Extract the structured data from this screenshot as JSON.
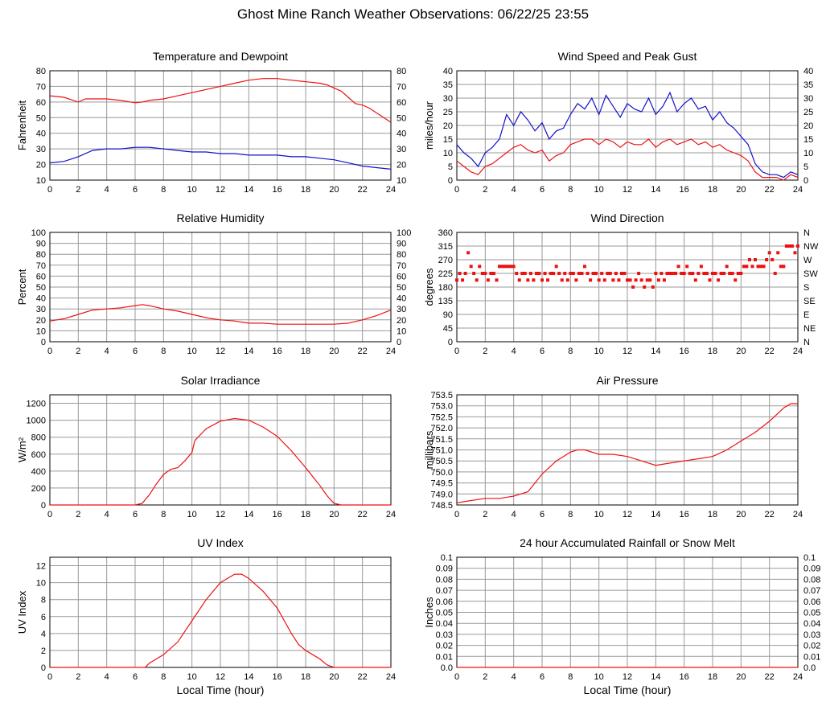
{
  "page": {
    "title": "Ghost Mine Ranch Weather Observations: 06/22/25 23:55"
  },
  "colors": {
    "red": "#ee1111",
    "blue": "#1111cc",
    "grid": "#999999"
  },
  "chart_data": [
    {
      "id": "temp",
      "type": "line",
      "title": "Temperature and Dewpoint",
      "ylabel": "Fahrenheit",
      "xlim": [
        0,
        24
      ],
      "ylim": [
        10,
        80
      ],
      "xticks": [
        "0",
        "2",
        "4",
        "6",
        "8",
        "10",
        "12",
        "14",
        "16",
        "18",
        "20",
        "22",
        "24"
      ],
      "yticks": [
        "10",
        "20",
        "30",
        "40",
        "50",
        "60",
        "70",
        "80"
      ],
      "right_ticks": [
        "10",
        "20",
        "30",
        "40",
        "50",
        "60",
        "70",
        "80"
      ],
      "grid": true,
      "series": [
        {
          "color": "red",
          "x": [
            0,
            1,
            2,
            2.5,
            4,
            5,
            6,
            6.5,
            7,
            8,
            9,
            10,
            11,
            12,
            13,
            14,
            15,
            16,
            17,
            18,
            19,
            19.5,
            20,
            20.5,
            21,
            21.5,
            22,
            22.5,
            23,
            23.5,
            24
          ],
          "y": [
            64,
            63,
            60,
            62,
            62,
            61,
            59.5,
            60,
            61,
            62,
            64,
            66,
            68,
            70,
            72,
            74,
            75,
            75,
            74,
            73,
            72,
            71,
            69,
            67,
            63,
            59,
            58,
            56,
            53,
            50,
            47
          ]
        },
        {
          "color": "blue",
          "x": [
            0,
            1,
            2,
            3,
            4,
            5,
            6,
            7,
            8,
            9,
            10,
            11,
            12,
            13,
            14,
            15,
            16,
            17,
            18,
            19,
            20,
            21,
            22,
            23,
            24
          ],
          "y": [
            21,
            22,
            25,
            29,
            30,
            30,
            31,
            31,
            30,
            29,
            28,
            28,
            27,
            27,
            26,
            26,
            26,
            25,
            25,
            24,
            23,
            21,
            19,
            18,
            17
          ]
        }
      ]
    },
    {
      "id": "wind",
      "type": "line",
      "title": "Wind Speed and Peak Gust",
      "ylabel": "miles/hour",
      "xlim": [
        0,
        24
      ],
      "ylim": [
        0,
        40
      ],
      "xticks": [
        "0",
        "2",
        "4",
        "6",
        "8",
        "10",
        "12",
        "14",
        "16",
        "18",
        "20",
        "22",
        "24"
      ],
      "yticks": [
        "0",
        "5",
        "10",
        "15",
        "20",
        "25",
        "30",
        "35",
        "40"
      ],
      "right_ticks": [
        "0",
        "5",
        "10",
        "15",
        "20",
        "25",
        "30",
        "35",
        "40"
      ],
      "grid": true,
      "series": [
        {
          "color": "blue",
          "x": [
            0,
            0.5,
            1,
            1.5,
            2,
            2.5,
            3,
            3.5,
            4,
            4.5,
            5,
            5.5,
            6,
            6.5,
            7,
            7.5,
            8,
            8.5,
            9,
            9.5,
            10,
            10.5,
            11,
            11.5,
            12,
            12.5,
            13,
            13.5,
            14,
            14.5,
            15,
            15.5,
            16,
            16.5,
            17,
            17.5,
            18,
            18.5,
            19,
            19.5,
            20,
            20.5,
            21,
            21.5,
            22,
            22.5,
            23,
            23.5,
            24
          ],
          "y": [
            13,
            10,
            8,
            5,
            10,
            12,
            15,
            24,
            20,
            25,
            22,
            18,
            21,
            15,
            18,
            19,
            24,
            28,
            26,
            30,
            24,
            31,
            27,
            23,
            28,
            26,
            25,
            30,
            24,
            27,
            32,
            25,
            28,
            30,
            26,
            27,
            22,
            25,
            21,
            19,
            16,
            13,
            6,
            3,
            2,
            2,
            1,
            3,
            2
          ]
        },
        {
          "color": "red",
          "x": [
            0,
            0.5,
            1,
            1.5,
            2,
            2.5,
            3,
            3.5,
            4,
            4.5,
            5,
            5.5,
            6,
            6.5,
            7,
            7.5,
            8,
            8.5,
            9,
            9.5,
            10,
            10.5,
            11,
            11.5,
            12,
            12.5,
            13,
            13.5,
            14,
            14.5,
            15,
            15.5,
            16,
            16.5,
            17,
            17.5,
            18,
            18.5,
            19,
            19.5,
            20,
            20.5,
            21,
            21.5,
            22,
            22.5,
            23,
            23.5,
            24
          ],
          "y": [
            7,
            5,
            3,
            2,
            5,
            6,
            8,
            10,
            12,
            13,
            11,
            10,
            11,
            7,
            9,
            10,
            13,
            14,
            15,
            15,
            13,
            15,
            14,
            12,
            14,
            13,
            13,
            15,
            12,
            14,
            15,
            13,
            14,
            15,
            13,
            14,
            12,
            13,
            11,
            10,
            9,
            7,
            3,
            1,
            1,
            1,
            0,
            2,
            1
          ]
        }
      ]
    },
    {
      "id": "humidity",
      "type": "line",
      "title": "Relative Humidity",
      "ylabel": "Percent",
      "xlim": [
        0,
        24
      ],
      "ylim": [
        0,
        100
      ],
      "xticks": [
        "0",
        "2",
        "4",
        "6",
        "8",
        "10",
        "12",
        "14",
        "16",
        "18",
        "20",
        "22",
        "24"
      ],
      "yticks": [
        "0",
        "10",
        "20",
        "30",
        "40",
        "50",
        "60",
        "70",
        "80",
        "90",
        "100"
      ],
      "right_ticks": [
        "0",
        "10",
        "20",
        "30",
        "40",
        "50",
        "60",
        "70",
        "80",
        "90",
        "100"
      ],
      "grid": true,
      "series": [
        {
          "color": "red",
          "x": [
            0,
            1,
            2,
            3,
            4,
            5,
            6,
            6.5,
            7,
            8,
            9,
            10,
            11,
            12,
            13,
            14,
            15,
            16,
            17,
            18,
            19,
            20,
            21,
            22,
            23,
            24
          ],
          "y": [
            19,
            21,
            25,
            29,
            30,
            31,
            33,
            34,
            33,
            30,
            28,
            25,
            22,
            20,
            19,
            17,
            17,
            16,
            16,
            16,
            16,
            16,
            17,
            20,
            24,
            29
          ]
        }
      ]
    },
    {
      "id": "winddir",
      "type": "scatter",
      "title": "Wind Direction",
      "ylabel": "degrees",
      "xlim": [
        0,
        24
      ],
      "ylim": [
        0,
        360
      ],
      "xticks": [
        "0",
        "2",
        "4",
        "6",
        "8",
        "10",
        "12",
        "14",
        "16",
        "18",
        "20",
        "22",
        "24"
      ],
      "yticks": [
        "0",
        "45",
        "90",
        "135",
        "180",
        "225",
        "270",
        "315",
        "360"
      ],
      "right_ticks": [
        "N",
        "NE",
        "E",
        "SE",
        "S",
        "SW",
        "W",
        "NW",
        "N"
      ],
      "grid": true,
      "series": [
        {
          "color": "red",
          "x": [
            0,
            0.2,
            0.4,
            0.6,
            0.8,
            1,
            1.2,
            1.4,
            1.6,
            1.8,
            2,
            2.2,
            2.4,
            2.6,
            2.8,
            3,
            3.2,
            3.4,
            3.6,
            3.8,
            4,
            4.2,
            4.4,
            4.6,
            4.8,
            5,
            5.2,
            5.4,
            5.6,
            5.8,
            6,
            6.2,
            6.4,
            6.6,
            6.8,
            7,
            7.2,
            7.4,
            7.6,
            7.8,
            8,
            8.2,
            8.4,
            8.6,
            8.8,
            9,
            9.2,
            9.4,
            9.6,
            9.8,
            10,
            10.2,
            10.4,
            10.6,
            10.8,
            11,
            11.2,
            11.4,
            11.6,
            11.8,
            12,
            12.2,
            12.4,
            12.6,
            12.8,
            13,
            13.2,
            13.4,
            13.6,
            13.8,
            14,
            14.2,
            14.4,
            14.6,
            14.8,
            15,
            15.2,
            15.4,
            15.6,
            15.8,
            16,
            16.2,
            16.4,
            16.6,
            16.8,
            17,
            17.2,
            17.4,
            17.6,
            17.8,
            18,
            18.2,
            18.4,
            18.6,
            18.8,
            19,
            19.2,
            19.4,
            19.6,
            19.8,
            20,
            20.2,
            20.4,
            20.6,
            20.8,
            21,
            21.2,
            21.4,
            21.6,
            21.8,
            22,
            22.2,
            22.4,
            22.6,
            22.8,
            23,
            23.2,
            23.4,
            23.6,
            23.8,
            24
          ],
          "y": [
            203,
            225,
            203,
            225,
            293,
            248,
            225,
            203,
            248,
            225,
            225,
            203,
            225,
            225,
            203,
            248,
            248,
            248,
            248,
            248,
            248,
            225,
            203,
            225,
            225,
            203,
            225,
            203,
            225,
            225,
            203,
            225,
            203,
            225,
            225,
            248,
            225,
            203,
            225,
            203,
            225,
            225,
            203,
            225,
            225,
            248,
            225,
            203,
            225,
            225,
            203,
            225,
            203,
            225,
            225,
            203,
            225,
            203,
            225,
            225,
            203,
            203,
            180,
            203,
            225,
            203,
            180,
            203,
            203,
            180,
            225,
            203,
            225,
            203,
            225,
            225,
            225,
            225,
            248,
            225,
            225,
            248,
            225,
            225,
            203,
            225,
            248,
            225,
            225,
            203,
            225,
            225,
            203,
            225,
            225,
            248,
            225,
            225,
            203,
            225,
            225,
            248,
            248,
            270,
            248,
            270,
            248,
            248,
            248,
            270,
            293,
            270,
            225,
            293,
            248,
            248,
            315,
            315,
            315,
            293,
            315
          ]
        }
      ]
    },
    {
      "id": "solar",
      "type": "line",
      "title": "Solar Irradiance",
      "ylabel": "W/m²",
      "xlim": [
        0,
        24
      ],
      "ylim": [
        0,
        1300
      ],
      "xticks": [
        "0",
        "2",
        "4",
        "6",
        "8",
        "10",
        "12",
        "14",
        "16",
        "18",
        "20",
        "22",
        "24"
      ],
      "yticks": [
        "0",
        "200",
        "400",
        "600",
        "800",
        "1000",
        "1200"
      ],
      "grid": true,
      "series": [
        {
          "color": "red",
          "x": [
            0,
            6,
            6.5,
            7,
            7.5,
            8,
            8.5,
            9,
            9.5,
            10,
            10.2,
            11,
            12,
            13,
            14,
            15,
            16,
            17,
            18,
            19,
            19.5,
            20,
            20.5,
            24
          ],
          "y": [
            0,
            0,
            20,
            120,
            250,
            360,
            420,
            440,
            520,
            620,
            760,
            900,
            990,
            1020,
            1000,
            920,
            810,
            640,
            440,
            230,
            110,
            20,
            0,
            0
          ]
        }
      ]
    },
    {
      "id": "pressure",
      "type": "line",
      "title": "Air Pressure",
      "ylabel": "millibars",
      "xlim": [
        0,
        24
      ],
      "ylim": [
        748.5,
        753.5
      ],
      "xticks": [
        "0",
        "2",
        "4",
        "6",
        "8",
        "10",
        "12",
        "14",
        "16",
        "18",
        "20",
        "22",
        "24"
      ],
      "yticks": [
        "748.5",
        "749.0",
        "749.5",
        "750.0",
        "750.5",
        "751.0",
        "751.5",
        "752.0",
        "752.5",
        "753.0",
        "753.5"
      ],
      "grid": true,
      "series": [
        {
          "color": "red",
          "x": [
            0,
            1,
            2,
            3,
            4,
            4.5,
            5,
            5.5,
            6,
            6.5,
            7,
            7.5,
            8,
            8.5,
            9,
            9.5,
            10,
            11,
            12,
            13,
            14,
            15,
            16,
            17,
            18,
            19,
            20,
            21,
            22,
            22.5,
            23,
            23.5,
            24
          ],
          "y": [
            748.6,
            748.7,
            748.8,
            748.8,
            748.9,
            749.0,
            749.1,
            749.5,
            749.9,
            750.2,
            750.5,
            750.7,
            750.9,
            751.0,
            751.0,
            750.9,
            750.8,
            750.8,
            750.7,
            750.5,
            750.3,
            750.4,
            750.5,
            750.6,
            750.7,
            751.0,
            751.4,
            751.8,
            752.3,
            752.6,
            752.9,
            753.1,
            753.1
          ]
        }
      ]
    },
    {
      "id": "uv",
      "type": "line",
      "title": "UV Index",
      "ylabel": "UV Index",
      "xlabel": "Local Time (hour)",
      "xlim": [
        0,
        24
      ],
      "ylim": [
        0,
        13
      ],
      "xticks": [
        "0",
        "2",
        "4",
        "6",
        "8",
        "10",
        "12",
        "14",
        "16",
        "18",
        "20",
        "22",
        "24"
      ],
      "yticks": [
        "0",
        "2",
        "4",
        "6",
        "8",
        "10",
        "12"
      ],
      "grid": true,
      "series": [
        {
          "color": "red",
          "x": [
            0,
            6.7,
            7,
            8,
            9,
            10,
            11,
            12,
            13,
            13.5,
            14,
            15,
            16,
            16.5,
            17,
            17.5,
            18,
            19,
            19.5,
            20,
            24
          ],
          "y": [
            0,
            0,
            0.5,
            1.5,
            3,
            5.5,
            8,
            10,
            11,
            11,
            10.5,
            9,
            7,
            5.5,
            4,
            2.7,
            2,
            1,
            0.3,
            0,
            0
          ]
        }
      ]
    },
    {
      "id": "rain",
      "type": "line",
      "title": "24 hour Accumulated Rainfall or Snow Melt",
      "ylabel": "Inches",
      "xlabel": "Local Time (hour)",
      "xlim": [
        0,
        24
      ],
      "ylim": [
        0,
        0.1
      ],
      "xticks": [
        "0",
        "2",
        "4",
        "6",
        "8",
        "10",
        "12",
        "14",
        "16",
        "18",
        "20",
        "22",
        "24"
      ],
      "yticks": [
        "0.0",
        "0.01",
        "0.02",
        "0.03",
        "0.04",
        "0.05",
        "0.06",
        "0.07",
        "0.08",
        "0.09",
        "0.1"
      ],
      "right_ticks": [
        "0.0",
        "0.01",
        "0.02",
        "0.03",
        "0.04",
        "0.05",
        "0.06",
        "0.07",
        "0.08",
        "0.09",
        "0.1"
      ],
      "grid": true,
      "series": [
        {
          "color": "red",
          "x": [
            0,
            24
          ],
          "y": [
            0,
            0
          ]
        }
      ]
    }
  ]
}
